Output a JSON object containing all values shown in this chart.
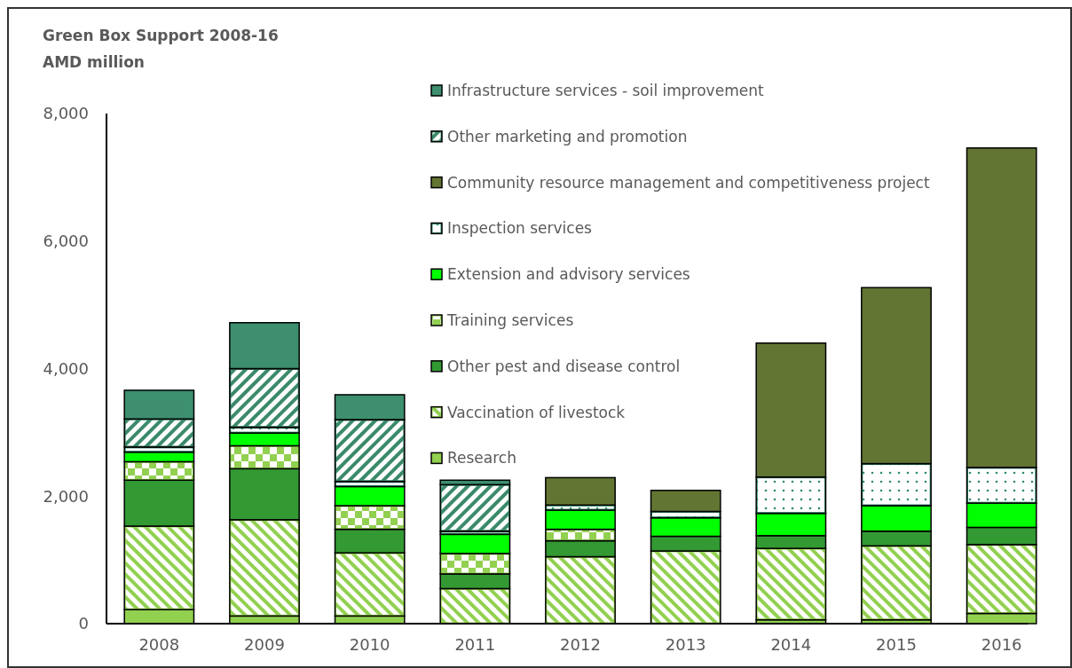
{
  "chart_data": {
    "type": "bar",
    "title": "Green Box Support 2008-16",
    "subtitle": "AMD million",
    "stacked": true,
    "categories": [
      "2008",
      "2009",
      "2010",
      "2011",
      "2012",
      "2013",
      "2014",
      "2015",
      "2016"
    ],
    "series": [
      {
        "name": "Research",
        "color": "#92d050",
        "values": [
          220,
          120,
          120,
          null,
          null,
          null,
          60,
          60,
          160
        ]
      },
      {
        "name": "Vaccination of livestock",
        "color": "#92d050",
        "values": [
          1310,
          1510,
          990,
          550,
          1050,
          1140,
          1120,
          1160,
          1080
        ]
      },
      {
        "name": "Other pest and disease control",
        "color": "#339933",
        "values": [
          720,
          800,
          370,
          230,
          250,
          230,
          200,
          230,
          270
        ]
      },
      {
        "name": "Training services",
        "color": "#92d050",
        "values": [
          290,
          360,
          370,
          320,
          180,
          0,
          0,
          0,
          0
        ]
      },
      {
        "name": "Extension and advisory services",
        "color": "#00ff00",
        "values": [
          150,
          200,
          300,
          300,
          300,
          290,
          350,
          400,
          380
        ]
      },
      {
        "name": "Inspection services",
        "color": "#2e8b6e",
        "values": [
          80,
          90,
          80,
          50,
          80,
          100,
          570,
          660,
          560
        ]
      },
      {
        "name": "Community resource management and competitiveness project",
        "color": "#637533",
        "values": [
          0,
          0,
          0,
          0,
          430,
          330,
          2100,
          2760,
          5010
        ]
      },
      {
        "name": "Other marketing and promotion",
        "color": "#3a8a6a",
        "values": [
          440,
          920,
          970,
          730,
          0,
          0,
          0,
          0,
          0
        ]
      },
      {
        "name": "Infrastructure services - soil improvement",
        "color": "#3d8f6e",
        "values": [
          450,
          720,
          390,
          70,
          0,
          0,
          0,
          0,
          0
        ]
      }
    ],
    "ylim": [
      0,
      8000
    ],
    "yticks": [
      {
        "value": 0,
        "label": "0"
      },
      {
        "value": 2000,
        "label": "2,000"
      },
      {
        "value": 4000,
        "label": "4,000"
      },
      {
        "value": 6000,
        "label": "6,000"
      },
      {
        "value": 8000,
        "label": "8,000"
      }
    ],
    "legend": "top",
    "grid": false
  }
}
